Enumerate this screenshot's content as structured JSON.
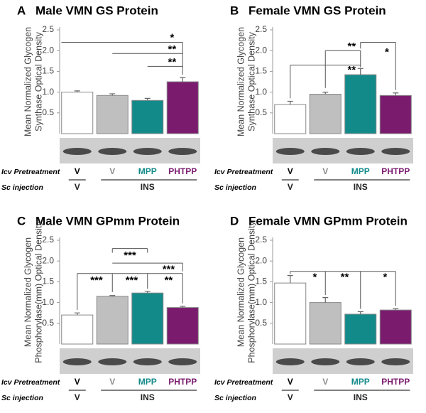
{
  "chart_data": [
    {
      "type": "bar",
      "panel": "A",
      "title": "Male VMN GS Protein",
      "ylabel": [
        "Mean Normalized Glycogen",
        "Synthase Optical Density"
      ],
      "categories": [
        "V",
        "V",
        "MPP",
        "PHTPP"
      ],
      "values": [
        1.0,
        0.92,
        0.8,
        1.25
      ],
      "errors": [
        0.03,
        0.04,
        0.05,
        0.1
      ],
      "colors": [
        "#ffffff",
        "#bfbfbf",
        "#138a8a",
        "#7a1b6e"
      ],
      "label_colors": [
        "#000000",
        "#8c8c8c",
        "#138a8a",
        "#7a1b6e"
      ],
      "ylim": [
        0,
        2.5
      ],
      "yticks": [
        0.5,
        {
          "value": 1,
          "label": "1.0"
        },
        1.5,
        {
          "value": 2,
          "label": "2.0"
        },
        2.5
      ],
      "annotations": [
        "*",
        "**",
        "**"
      ],
      "row_labels": [
        "Icv Pretreatment",
        "Sc injection"
      ],
      "sc_injection": [
        "V",
        "INS"
      ]
    },
    {
      "type": "bar",
      "panel": "B",
      "title": "Female VMN GS Protein",
      "ylabel": [
        "Mean Normalized Glycogen",
        "Synthase Optical Density"
      ],
      "categories": [
        "V",
        "V",
        "MPP",
        "PHTPP"
      ],
      "values": [
        0.7,
        0.95,
        1.42,
        0.92
      ],
      "errors": [
        0.08,
        0.05,
        0.15,
        0.06
      ],
      "colors": [
        "#ffffff",
        "#bfbfbf",
        "#138a8a",
        "#7a1b6e"
      ],
      "label_colors": [
        "#000000",
        "#8c8c8c",
        "#138a8a",
        "#7a1b6e"
      ],
      "ylim": [
        0,
        2.5
      ],
      "yticks": [
        0.5,
        {
          "value": 1,
          "label": "1.0"
        },
        1.5,
        {
          "value": 2,
          "label": "2.0"
        },
        2.5
      ],
      "annotations": [
        "**",
        "**",
        "*"
      ],
      "row_labels": [
        "Icv Pretreatment",
        "Sc injection"
      ],
      "sc_injection": [
        "V",
        "INS"
      ]
    },
    {
      "type": "bar",
      "panel": "C",
      "title": "Male VMN GPmm Protein",
      "ylabel": [
        "Mean Normalized Glycogen",
        "Phosphorylase(mm) Optical Density"
      ],
      "categories": [
        "V",
        "V",
        "MPP",
        "PHTPP"
      ],
      "values": [
        0.7,
        1.15,
        1.23,
        0.88
      ],
      "errors": [
        0.05,
        0.02,
        0.04,
        0.03
      ],
      "colors": [
        "#ffffff",
        "#bfbfbf",
        "#138a8a",
        "#7a1b6e"
      ],
      "label_colors": [
        "#000000",
        "#8c8c8c",
        "#138a8a",
        "#7a1b6e"
      ],
      "ylim": [
        0,
        2.5
      ],
      "yticks": [
        0.5,
        {
          "value": 1,
          "label": "1.0"
        },
        1.5,
        {
          "value": 2,
          "label": "2.0"
        },
        2.5
      ],
      "annotations": [
        "***",
        "***",
        "***",
        "***",
        "**"
      ],
      "row_labels": [
        "Icv Pretreatment",
        "Sc injection"
      ],
      "sc_injection": [
        "V",
        "INS"
      ]
    },
    {
      "type": "bar",
      "panel": "D",
      "title": "Female VMN GPmm Protein",
      "ylabel": [
        "Mean Normalized Glycogen",
        "Phosphorylase(mm) Optical Density"
      ],
      "categories": [
        "V",
        "V",
        "MPP",
        "PHTPP"
      ],
      "values": [
        1.47,
        1.0,
        0.72,
        0.82
      ],
      "errors": [
        0.18,
        0.12,
        0.06,
        0.03
      ],
      "colors": [
        "#ffffff",
        "#bfbfbf",
        "#138a8a",
        "#7a1b6e"
      ],
      "label_colors": [
        "#000000",
        "#8c8c8c",
        "#138a8a",
        "#7a1b6e"
      ],
      "ylim": [
        0,
        2.5
      ],
      "yticks": [
        0.5,
        {
          "value": 1,
          "label": "1.0"
        },
        1.5,
        {
          "value": 2,
          "label": "2.0"
        },
        2.5
      ],
      "annotations": [
        "*",
        "**",
        "*"
      ],
      "row_labels": [
        "Icv Pretreatment",
        "Sc injection"
      ],
      "sc_injection": [
        "V",
        "INS"
      ]
    }
  ]
}
